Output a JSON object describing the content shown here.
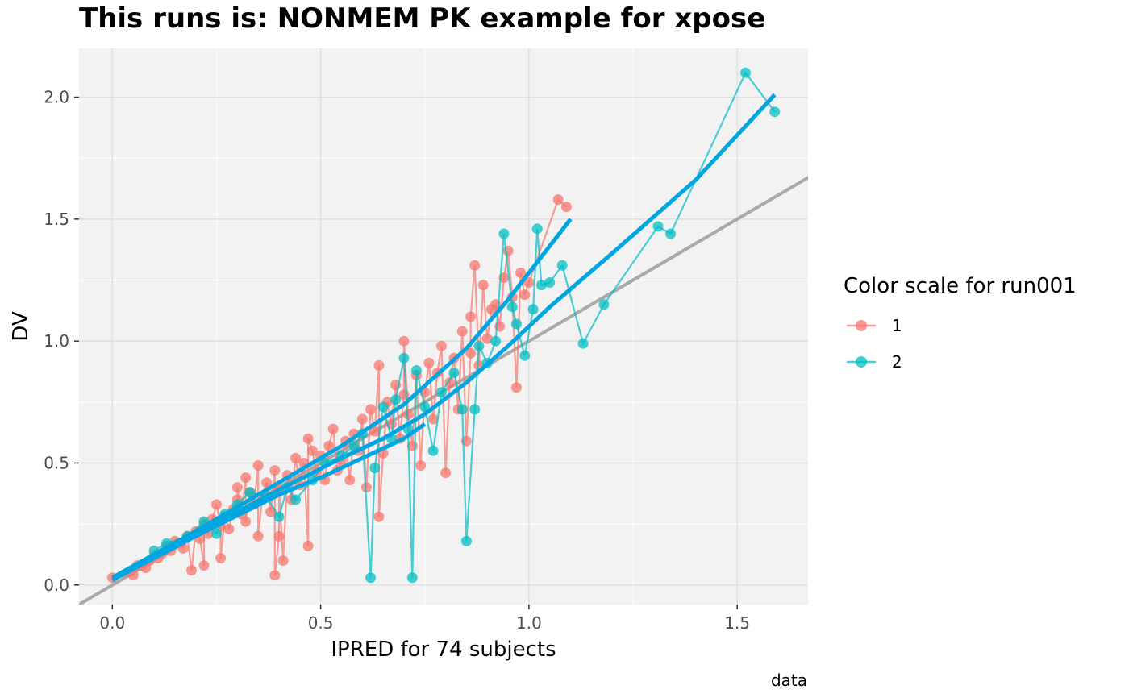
{
  "chart_data": {
    "type": "scatter",
    "title": "This runs is: NONMEM PK example for xpose",
    "xlabel": "IPRED for 74 subjects",
    "ylabel": "DV",
    "caption": "data",
    "xlim": [
      -0.08,
      1.67
    ],
    "ylim": [
      -0.08,
      2.2
    ],
    "x_ticks": [
      0.0,
      0.5,
      1.0,
      1.5
    ],
    "x_tick_labels": [
      "0.0",
      "0.5",
      "1.0",
      "1.5"
    ],
    "y_ticks": [
      0.0,
      0.5,
      1.0,
      1.5,
      2.0
    ],
    "y_tick_labels": [
      "0.0",
      "0.5",
      "1.0",
      "1.5",
      "2.0"
    ],
    "grid": true,
    "legend": {
      "title": "Color scale for run001",
      "position": "right",
      "entries": [
        "1",
        "2"
      ]
    },
    "colors": {
      "panel_bg": "#f2f2f2",
      "grid": "#e0e0e0",
      "series_1": "#f8766d",
      "series_2": "#00bfc4",
      "smooth": "#00a6e2",
      "identity": "#a9a9a9"
    },
    "identity_line": {
      "slope": 1,
      "intercept": 0
    },
    "series": [
      {
        "name": "1",
        "points": [
          [
            0.0,
            0.03
          ],
          [
            0.05,
            0.04
          ],
          [
            0.06,
            0.08
          ],
          [
            0.07,
            0.08
          ],
          [
            0.08,
            0.07
          ],
          [
            0.09,
            0.1
          ],
          [
            0.1,
            0.12
          ],
          [
            0.11,
            0.11
          ],
          [
            0.12,
            0.13
          ],
          [
            0.13,
            0.16
          ],
          [
            0.14,
            0.14
          ],
          [
            0.15,
            0.18
          ],
          [
            0.16,
            0.17
          ],
          [
            0.17,
            0.15
          ],
          [
            0.18,
            0.2
          ],
          [
            0.19,
            0.06
          ],
          [
            0.2,
            0.22
          ],
          [
            0.21,
            0.19
          ],
          [
            0.22,
            0.08
          ],
          [
            0.22,
            0.25
          ],
          [
            0.23,
            0.21
          ],
          [
            0.24,
            0.27
          ],
          [
            0.25,
            0.33
          ],
          [
            0.26,
            0.24
          ],
          [
            0.26,
            0.11
          ],
          [
            0.27,
            0.28
          ],
          [
            0.28,
            0.23
          ],
          [
            0.29,
            0.31
          ],
          [
            0.3,
            0.35
          ],
          [
            0.3,
            0.4
          ],
          [
            0.31,
            0.29
          ],
          [
            0.32,
            0.44
          ],
          [
            0.32,
            0.26
          ],
          [
            0.33,
            0.38
          ],
          [
            0.34,
            0.33
          ],
          [
            0.35,
            0.49
          ],
          [
            0.35,
            0.2
          ],
          [
            0.36,
            0.36
          ],
          [
            0.37,
            0.42
          ],
          [
            0.38,
            0.3
          ],
          [
            0.39,
            0.47
          ],
          [
            0.39,
            0.04
          ],
          [
            0.4,
            0.2
          ],
          [
            0.4,
            0.39
          ],
          [
            0.41,
            0.1
          ],
          [
            0.42,
            0.45
          ],
          [
            0.43,
            0.35
          ],
          [
            0.44,
            0.52
          ],
          [
            0.45,
            0.41
          ],
          [
            0.46,
            0.5
          ],
          [
            0.47,
            0.16
          ],
          [
            0.47,
            0.6
          ],
          [
            0.48,
            0.55
          ],
          [
            0.49,
            0.46
          ],
          [
            0.5,
            0.53
          ],
          [
            0.51,
            0.43
          ],
          [
            0.52,
            0.57
          ],
          [
            0.53,
            0.64
          ],
          [
            0.54,
            0.47
          ],
          [
            0.55,
            0.51
          ],
          [
            0.56,
            0.59
          ],
          [
            0.57,
            0.43
          ],
          [
            0.58,
            0.62
          ],
          [
            0.59,
            0.55
          ],
          [
            0.6,
            0.68
          ],
          [
            0.61,
            0.4
          ],
          [
            0.62,
            0.72
          ],
          [
            0.63,
            0.63
          ],
          [
            0.64,
            0.9
          ],
          [
            0.64,
            0.28
          ],
          [
            0.65,
            0.54
          ],
          [
            0.66,
            0.75
          ],
          [
            0.67,
            0.66
          ],
          [
            0.68,
            0.82
          ],
          [
            0.69,
            0.6
          ],
          [
            0.7,
            0.78
          ],
          [
            0.7,
            1.0
          ],
          [
            0.71,
            0.7
          ],
          [
            0.72,
            0.57
          ],
          [
            0.73,
            0.86
          ],
          [
            0.74,
            0.49
          ],
          [
            0.75,
            0.79
          ],
          [
            0.76,
            0.91
          ],
          [
            0.77,
            0.68
          ],
          [
            0.78,
            0.87
          ],
          [
            0.79,
            0.98
          ],
          [
            0.8,
            0.46
          ],
          [
            0.81,
            0.83
          ],
          [
            0.82,
            0.93
          ],
          [
            0.83,
            0.72
          ],
          [
            0.84,
            1.04
          ],
          [
            0.85,
            0.59
          ],
          [
            0.86,
            0.95
          ],
          [
            0.86,
            1.1
          ],
          [
            0.87,
            1.31
          ],
          [
            0.88,
            0.9
          ],
          [
            0.89,
            1.23
          ],
          [
            0.9,
            1.01
          ],
          [
            0.91,
            1.13
          ],
          [
            0.92,
            1.15
          ],
          [
            0.93,
            1.06
          ],
          [
            0.94,
            1.26
          ],
          [
            0.95,
            1.37
          ],
          [
            0.96,
            1.18
          ],
          [
            0.97,
            0.81
          ],
          [
            0.98,
            1.28
          ],
          [
            0.99,
            1.19
          ],
          [
            1.0,
            1.24
          ],
          [
            1.07,
            1.58
          ],
          [
            1.09,
            1.55
          ]
        ]
      },
      {
        "name": "2",
        "points": [
          [
            0.1,
            0.14
          ],
          [
            0.13,
            0.17
          ],
          [
            0.18,
            0.2
          ],
          [
            0.22,
            0.26
          ],
          [
            0.25,
            0.21
          ],
          [
            0.27,
            0.29
          ],
          [
            0.3,
            0.33
          ],
          [
            0.33,
            0.38
          ],
          [
            0.37,
            0.36
          ],
          [
            0.4,
            0.28
          ],
          [
            0.42,
            0.4
          ],
          [
            0.44,
            0.35
          ],
          [
            0.48,
            0.43
          ],
          [
            0.51,
            0.5
          ],
          [
            0.55,
            0.53
          ],
          [
            0.58,
            0.57
          ],
          [
            0.6,
            0.62
          ],
          [
            0.62,
            0.03
          ],
          [
            0.63,
            0.48
          ],
          [
            0.65,
            0.73
          ],
          [
            0.67,
            0.6
          ],
          [
            0.68,
            0.76
          ],
          [
            0.7,
            0.93
          ],
          [
            0.71,
            0.64
          ],
          [
            0.72,
            0.03
          ],
          [
            0.73,
            0.88
          ],
          [
            0.75,
            0.73
          ],
          [
            0.77,
            0.55
          ],
          [
            0.79,
            0.79
          ],
          [
            0.82,
            0.87
          ],
          [
            0.84,
            0.72
          ],
          [
            0.85,
            0.18
          ],
          [
            0.87,
            0.72
          ],
          [
            0.88,
            0.98
          ],
          [
            0.9,
            0.91
          ],
          [
            0.92,
            1.0
          ],
          [
            0.94,
            1.44
          ],
          [
            0.96,
            1.14
          ],
          [
            0.97,
            1.07
          ],
          [
            0.99,
            0.94
          ],
          [
            1.01,
            1.13
          ],
          [
            1.02,
            1.46
          ],
          [
            1.03,
            1.23
          ],
          [
            1.05,
            1.24
          ],
          [
            1.08,
            1.31
          ],
          [
            1.13,
            0.99
          ],
          [
            1.18,
            1.15
          ],
          [
            1.31,
            1.47
          ],
          [
            1.34,
            1.44
          ],
          [
            1.52,
            2.1
          ],
          [
            1.59,
            1.94
          ]
        ]
      }
    ],
    "smooth_lines": [
      {
        "x": [
          0.0,
          0.2,
          0.4,
          0.55,
          0.7,
          0.85,
          0.95,
          1.1
        ],
        "y": [
          0.03,
          0.22,
          0.42,
          0.57,
          0.74,
          0.97,
          1.17,
          1.5
        ]
      },
      {
        "x": [
          0.0,
          0.2,
          0.4,
          0.55,
          0.65,
          0.75,
          0.85,
          0.95,
          1.05,
          1.2,
          1.4,
          1.59
        ],
        "y": [
          0.02,
          0.21,
          0.39,
          0.52,
          0.6,
          0.7,
          0.83,
          0.98,
          1.14,
          1.36,
          1.66,
          2.01
        ]
      },
      {
        "x": [
          0.0,
          0.2,
          0.4,
          0.5,
          0.6,
          0.7,
          0.75
        ],
        "y": [
          0.02,
          0.2,
          0.37,
          0.44,
          0.52,
          0.6,
          0.66
        ]
      }
    ]
  }
}
